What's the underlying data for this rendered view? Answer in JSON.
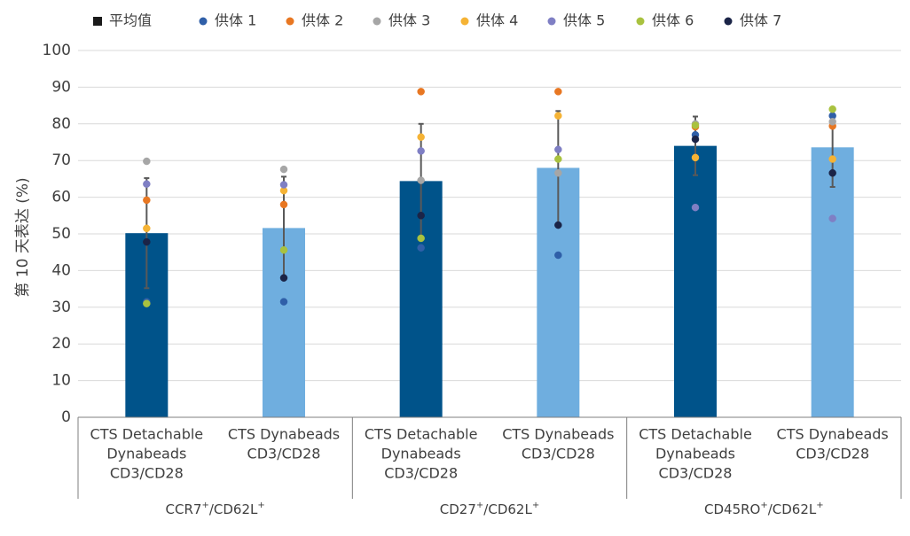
{
  "chart_data": {
    "type": "bar",
    "ylabel": "第 10 天表达 (%)",
    "ylim": [
      0,
      100
    ],
    "yticks": [
      0,
      10,
      20,
      30,
      40,
      50,
      60,
      70,
      80,
      90,
      100
    ],
    "grid": true,
    "legend_position": "top",
    "legend": [
      {
        "label": "平均值",
        "color": "#1a1a1a",
        "shape": "square"
      },
      {
        "label": "供体 1",
        "color": "#2f5fa8",
        "shape": "circle"
      },
      {
        "label": "供体 2",
        "color": "#e87722",
        "shape": "circle"
      },
      {
        "label": "供体 3",
        "color": "#a6a6a6",
        "shape": "circle"
      },
      {
        "label": "供体 4",
        "color": "#f5b335",
        "shape": "circle"
      },
      {
        "label": "供体 5",
        "color": "#7f7fc4",
        "shape": "circle"
      },
      {
        "label": "供体 6",
        "color": "#a9c23f",
        "shape": "circle"
      },
      {
        "label": "供体 7",
        "color": "#1b2447",
        "shape": "circle"
      }
    ],
    "groups": [
      {
        "label_parts": [
          "CCR7",
          "+",
          "/CD62L",
          "+"
        ],
        "bars": [
          {
            "label_lines": [
              "CTS Detachable",
              "Dynabeads",
              "CD3/CD28"
            ],
            "mean": 50.2,
            "err_low": 35.2,
            "err_high": 65.2,
            "color": "#00538a",
            "donors": [
              31.5,
              59.2,
              69.8,
              51.5,
              63.6,
              31.0,
              47.8
            ]
          },
          {
            "label_lines": [
              "CTS Dynabeads",
              "CD3/CD28"
            ],
            "mean": 51.6,
            "err_low": 37.6,
            "err_high": 65.6,
            "color": "#6faedf",
            "donors": [
              31.5,
              58.0,
              67.6,
              61.8,
              63.4,
              45.6,
              38.0
            ]
          }
        ]
      },
      {
        "label_parts": [
          "CD27",
          "+",
          "/CD62L",
          "+"
        ],
        "bars": [
          {
            "label_lines": [
              "CTS Detachable",
              "Dynabeads",
              "CD3/CD28"
            ],
            "mean": 64.4,
            "err_low": 48.8,
            "err_high": 80.0,
            "color": "#00538a",
            "donors": [
              46.2,
              88.8,
              64.6,
              76.4,
              72.6,
              48.8,
              55.0
            ]
          },
          {
            "label_lines": [
              "CTS Dynabeads",
              "CD3/CD28"
            ],
            "mean": 68.0,
            "err_low": 52.5,
            "err_high": 83.5,
            "color": "#6faedf",
            "donors": [
              44.2,
              88.8,
              66.6,
              82.2,
              73.0,
              70.4,
              52.4
            ]
          }
        ]
      },
      {
        "label_parts": [
          "CD45RO",
          "+",
          "/CD62L",
          "+"
        ],
        "bars": [
          {
            "label_lines": [
              "CTS Detachable",
              "Dynabeads",
              "CD3/CD28"
            ],
            "mean": 74.0,
            "err_low": 66.0,
            "err_high": 82.0,
            "color": "#00538a",
            "donors": [
              77.0,
              79.2,
              80.0,
              70.8,
              57.2,
              79.6,
              75.8
            ]
          },
          {
            "label_lines": [
              "CTS Dynabeads",
              "CD3/CD28"
            ],
            "mean": 73.6,
            "err_low": 62.8,
            "err_high": 84.0,
            "color": "#6faedf",
            "donors": [
              82.2,
              79.4,
              80.6,
              70.4,
              54.2,
              84.0,
              66.6
            ]
          }
        ]
      }
    ]
  }
}
